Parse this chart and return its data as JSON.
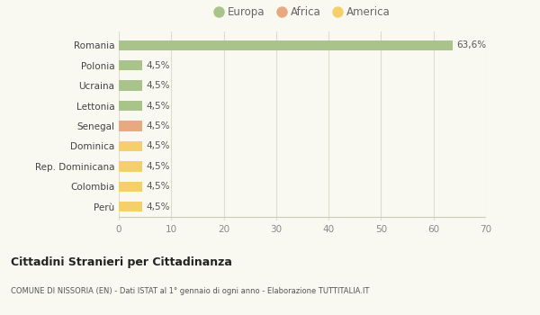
{
  "categories": [
    "Perù",
    "Colombia",
    "Rep. Dominicana",
    "Dominica",
    "Senegal",
    "Lettonia",
    "Ucraina",
    "Polonia",
    "Romania"
  ],
  "values": [
    4.5,
    4.5,
    4.5,
    4.5,
    4.5,
    4.5,
    4.5,
    4.5,
    63.6
  ],
  "colors": [
    "#f5cf6b",
    "#f5cf6b",
    "#f5cf6b",
    "#f5cf6b",
    "#e8a882",
    "#a8c48a",
    "#a8c48a",
    "#a8c48a",
    "#a8c48a"
  ],
  "labels": [
    "4,5%",
    "4,5%",
    "4,5%",
    "4,5%",
    "4,5%",
    "4,5%",
    "4,5%",
    "4,5%",
    "63,6%"
  ],
  "legend": [
    {
      "label": "Europa",
      "color": "#a8c48a"
    },
    {
      "label": "Africa",
      "color": "#e8a882"
    },
    {
      "label": "America",
      "color": "#f5cf6b"
    }
  ],
  "xlim": [
    0,
    70
  ],
  "xticks": [
    0,
    10,
    20,
    30,
    40,
    50,
    60,
    70
  ],
  "title": "Cittadini Stranieri per Cittadinanza",
  "subtitle": "COMUNE DI NISSORIA (EN) - Dati ISTAT al 1° gennaio di ogni anno - Elaborazione TUTTITALIA.IT",
  "background_color": "#f9f9f2",
  "grid_color": "#ddddcc",
  "bar_height": 0.5
}
